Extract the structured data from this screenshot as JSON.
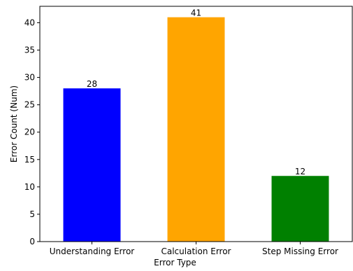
{
  "chart_data": {
    "type": "bar",
    "title": "",
    "xlabel": "Error Type",
    "ylabel": "Error Count (Num)",
    "categories": [
      "Understanding Error",
      "Calculation Error",
      "Step Missing Error"
    ],
    "values": [
      28,
      41,
      12
    ],
    "data_labels": [
      "28",
      "41",
      "12"
    ],
    "colors": [
      "#0000ff",
      "#ffa500",
      "#008000"
    ],
    "ylim": [
      0,
      43
    ],
    "yticks": [
      0,
      5,
      10,
      15,
      20,
      25,
      30,
      35,
      40
    ],
    "grid": false,
    "legend": "none"
  }
}
